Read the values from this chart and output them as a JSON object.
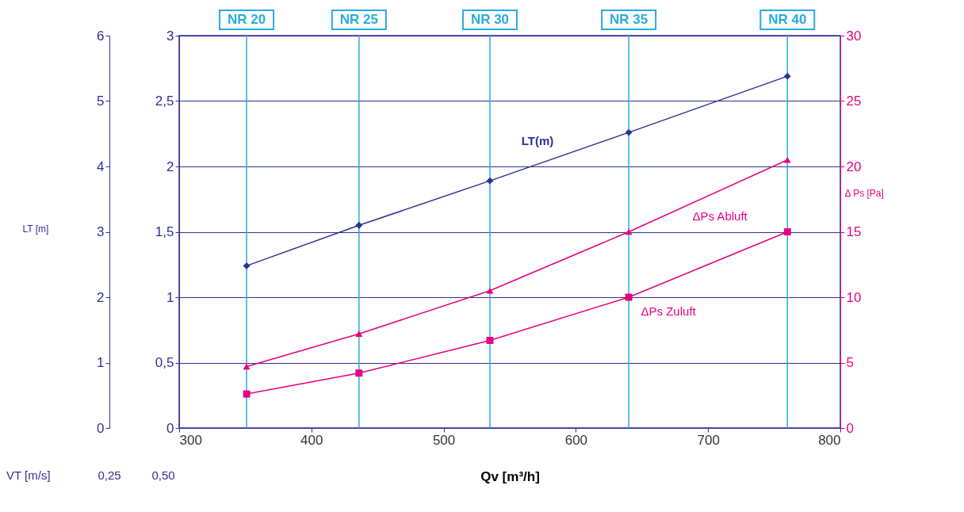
{
  "chart_data": {
    "type": "line",
    "xlabel": "Qv [m³/h]",
    "y2label": "Δ Ps [Pa]",
    "y3label": "LT [m]",
    "x": [
      351,
      436,
      535,
      640,
      760
    ],
    "xlim": [
      300,
      800
    ],
    "xticks": [
      300,
      400,
      500,
      600,
      700,
      800
    ],
    "ylim": [
      0,
      3
    ],
    "yticks": [
      0,
      {
        "value": 0.5,
        "label": "0,5"
      },
      1,
      {
        "value": 1.5,
        "label": "1,5"
      },
      2,
      {
        "value": 2.5,
        "label": "2,5"
      },
      3
    ],
    "y2lim": [
      0,
      30
    ],
    "y2ticks": [
      0,
      5,
      10,
      15,
      20,
      25,
      30
    ],
    "y3lim": [
      0,
      6
    ],
    "y3ticks": [
      0,
      1,
      2,
      3,
      4,
      5,
      6
    ],
    "series": [
      {
        "name": "LT(m)",
        "color": "#2e3192",
        "marker": "diamond",
        "axis": "y",
        "values": [
          1.24,
          1.55,
          1.89,
          2.26,
          2.69
        ]
      },
      {
        "name": "ΔPs Abluft",
        "color": "#e6007e",
        "marker": "triangle",
        "axis": "y2",
        "values": [
          4.7,
          7.2,
          10.5,
          15,
          20.5
        ]
      },
      {
        "name": "ΔPs Zuluft",
        "color": "#e6007e",
        "marker": "square",
        "axis": "y2",
        "values": [
          2.6,
          4.2,
          6.7,
          10,
          15
        ]
      }
    ],
    "ref_lines": [
      {
        "axis": "x",
        "value": 351,
        "label": "NR 20",
        "color": "#29abe2"
      },
      {
        "axis": "x",
        "value": 436,
        "label": "NR 25",
        "color": "#29abe2"
      },
      {
        "axis": "x",
        "value": 535,
        "label": "NR 30",
        "color": "#29abe2"
      },
      {
        "axis": "x",
        "value": 640,
        "label": "NR 35",
        "color": "#29abe2"
      },
      {
        "axis": "x",
        "value": 760,
        "label": "NR 40",
        "color": "#29abe2"
      }
    ],
    "annotations": [
      "VT [m/s]",
      "0,25",
      "0,50"
    ],
    "grid": "y",
    "line_style": "solid"
  }
}
